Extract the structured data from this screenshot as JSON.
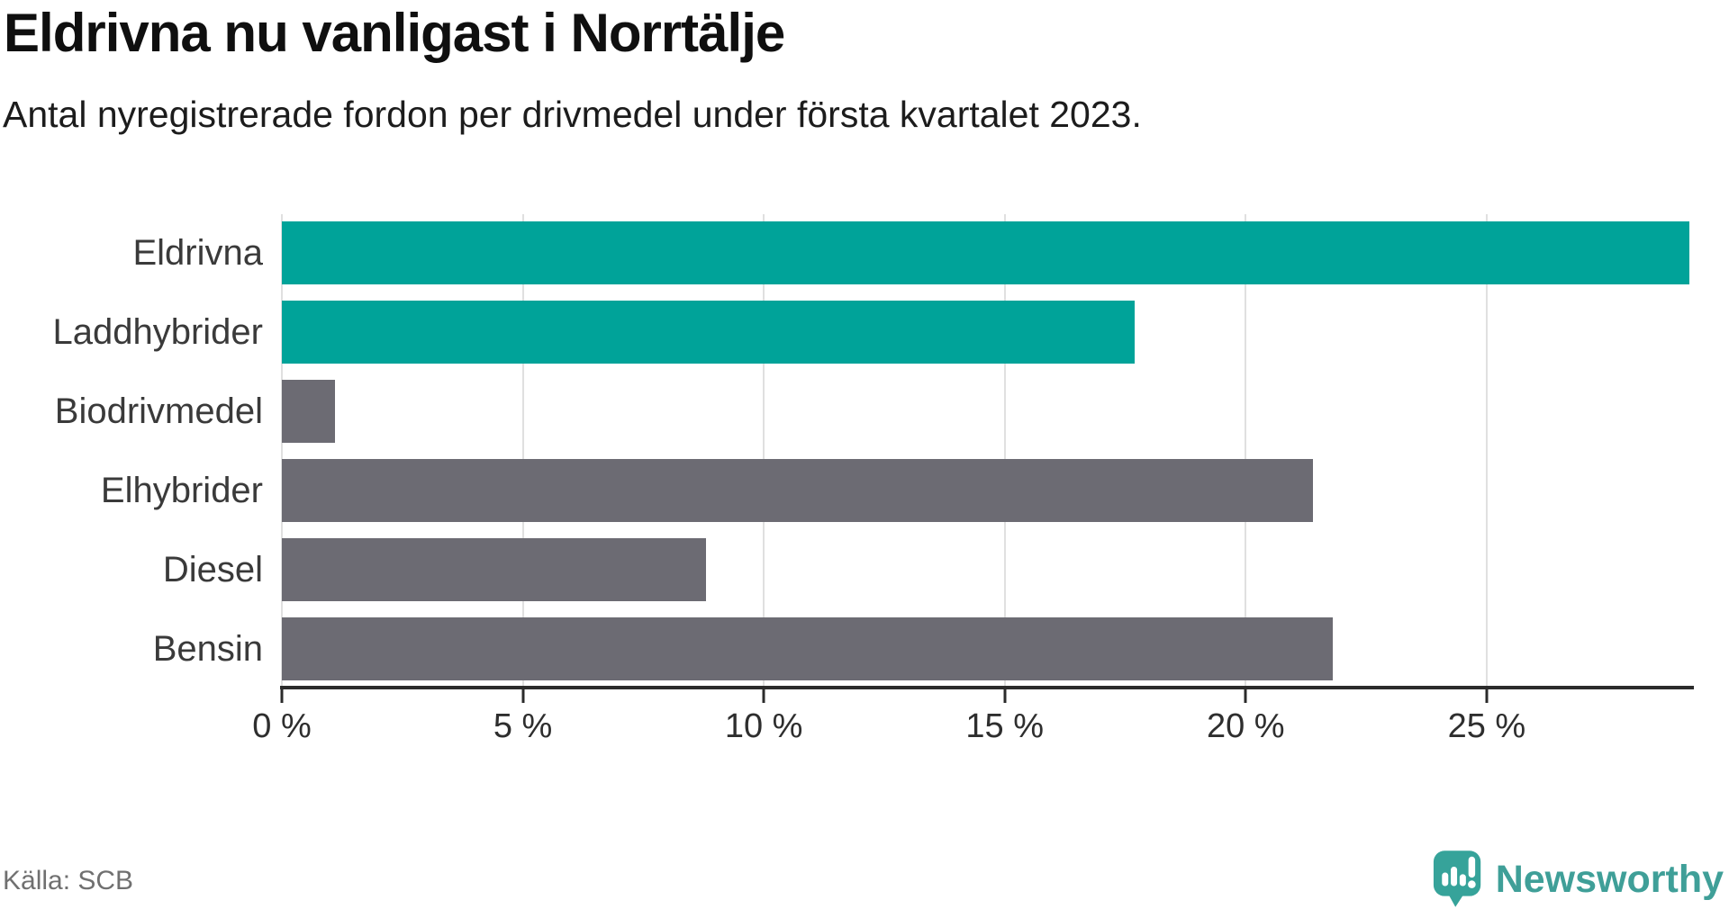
{
  "header": {
    "title": "Eldrivna nu vanligast i Norrtälje",
    "subtitle": "Antal nyregistrerade fordon per drivmedel under första kvartalet 2023."
  },
  "footer": {
    "source": "Källa: SCB",
    "logo_text": "Newsworthy"
  },
  "colors": {
    "highlight_teal": "#00a399",
    "muted_gray": "#6c6b73",
    "axis": "#2b2b2b",
    "grid": "#e0e0e0",
    "brand_teal": "#3f9f98"
  },
  "chart_data": {
    "type": "bar",
    "orientation": "horizontal",
    "title": "Eldrivna nu vanligast i Norrtälje",
    "subtitle": "Antal nyregistrerade fordon per drivmedel under första kvartalet 2023.",
    "categories": [
      "Eldrivna",
      "Laddhybrider",
      "Biodrivmedel",
      "Elhybrider",
      "Diesel",
      "Bensin"
    ],
    "values": [
      29.2,
      17.7,
      1.1,
      21.4,
      8.8,
      21.8
    ],
    "unit": "%",
    "bar_colors": [
      "#00a399",
      "#00a399",
      "#6c6b73",
      "#6c6b73",
      "#6c6b73",
      "#6c6b73"
    ],
    "xlim": [
      0,
      29.3
    ],
    "x_ticks": [
      0,
      5,
      10,
      15,
      20,
      25
    ],
    "x_tick_labels": [
      "0 %",
      "5 %",
      "10 %",
      "15 %",
      "20 %",
      "25 %"
    ],
    "grid": true,
    "legend": false
  }
}
